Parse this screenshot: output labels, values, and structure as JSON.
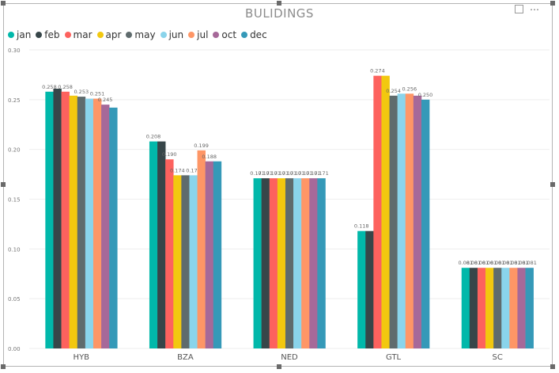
{
  "chart_data": {
    "type": "bar",
    "title": "BULIDINGS",
    "categories": [
      "HYB",
      "BZA",
      "NED",
      "GTL",
      "SC"
    ],
    "series": [
      {
        "name": "jan",
        "color": "#01B8AA",
        "values": [
          0.258,
          0.208,
          0.171,
          0.118,
          0.081
        ]
      },
      {
        "name": "feb",
        "color": "#374649",
        "values": [
          0.261,
          0.208,
          0.171,
          0.118,
          0.081
        ]
      },
      {
        "name": "mar",
        "color": "#FD625E",
        "values": [
          0.258,
          0.19,
          0.171,
          0.274,
          0.081
        ]
      },
      {
        "name": "apr",
        "color": "#F2C80F",
        "values": [
          0.254,
          0.174,
          0.171,
          0.274,
          0.081
        ]
      },
      {
        "name": "may",
        "color": "#5F6B6D",
        "values": [
          0.253,
          0.174,
          0.171,
          0.254,
          0.081
        ]
      },
      {
        "name": "jun",
        "color": "#8AD4EB",
        "values": [
          0.251,
          0.174,
          0.171,
          0.256,
          0.081
        ]
      },
      {
        "name": "jul",
        "color": "#FE9666",
        "values": [
          0.251,
          0.199,
          0.171,
          0.256,
          0.081
        ]
      },
      {
        "name": "oct",
        "color": "#A66999",
        "values": [
          0.245,
          0.188,
          0.171,
          0.254,
          0.081
        ]
      },
      {
        "name": "dec",
        "color": "#3599B8",
        "values": [
          0.242,
          0.188,
          0.171,
          0.25,
          0.081
        ]
      }
    ],
    "labels": [
      [
        "0.258",
        "",
        "0.258",
        "",
        "0.253",
        "",
        "0.251",
        "0.245",
        ""
      ],
      [
        "0.208",
        "",
        "0.190",
        "0.174",
        "",
        "0.174",
        "0.199",
        "0.188",
        ""
      ],
      [
        "0.171",
        "0.171",
        "0.171",
        "0.171",
        "0.171",
        "0.171",
        "0.171",
        "0.171",
        "0.171"
      ],
      [
        "0.118",
        "",
        "0.274",
        "",
        "0.254",
        "",
        "0.256",
        "",
        "0.250"
      ],
      [
        "0.081",
        "0.081",
        "0.081",
        "0.081",
        "0.081",
        "0.081",
        "0.081",
        "0.081",
        "0.081"
      ]
    ],
    "yticks": [
      "0.00",
      "0.05",
      "0.10",
      "0.15",
      "0.20",
      "0.25",
      "0.30"
    ],
    "ylim": [
      0,
      0.3
    ],
    "grid": true,
    "legend_position": "top-left"
  }
}
